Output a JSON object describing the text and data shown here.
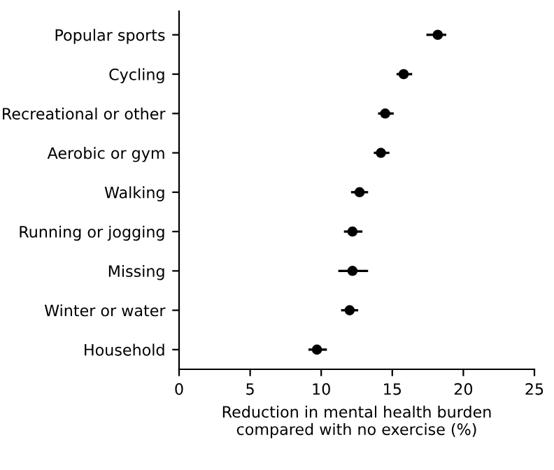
{
  "chart_data": {
    "type": "scatter",
    "orientation": "horizontal",
    "xlabel": "Reduction in mental health burden\ncompared with no exercise (%)",
    "categories": [
      "Popular sports",
      "Cycling",
      "Recreational or other",
      "Aerobic or gym",
      "Walking",
      "Running or jogging",
      "Missing",
      "Winter or water",
      "Household"
    ],
    "values": [
      18.2,
      15.8,
      14.5,
      14.2,
      12.7,
      12.2,
      12.2,
      12.0,
      9.7
    ],
    "errors": [
      [
        17.4,
        18.8
      ],
      [
        15.3,
        16.4
      ],
      [
        14.0,
        15.1
      ],
      [
        13.7,
        14.8
      ],
      [
        12.1,
        13.3
      ],
      [
        11.6,
        12.9
      ],
      [
        11.2,
        13.3
      ],
      [
        11.4,
        12.6
      ],
      [
        9.1,
        10.4
      ]
    ],
    "color": "#000000",
    "marker": "circle",
    "xlim": [
      0,
      25
    ],
    "xticks": [
      0,
      5,
      10,
      15,
      20,
      25
    ],
    "grid": false,
    "legend": false
  }
}
